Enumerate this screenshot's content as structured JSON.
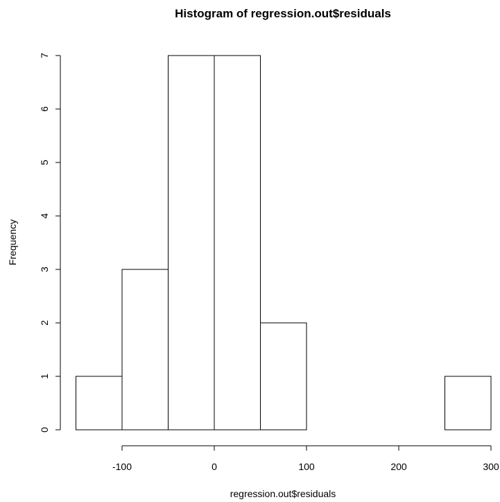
{
  "chart_data": {
    "type": "bar",
    "subtype": "histogram",
    "title": "Histogram of regression.out$residuals",
    "xlabel": "regression.out$residuals",
    "ylabel": "Frequency",
    "bins": [
      {
        "start": -150,
        "end": -100,
        "count": 1
      },
      {
        "start": -100,
        "end": -50,
        "count": 3
      },
      {
        "start": -50,
        "end": 0,
        "count": 7
      },
      {
        "start": 0,
        "end": 50,
        "count": 7
      },
      {
        "start": 50,
        "end": 100,
        "count": 2
      },
      {
        "start": 100,
        "end": 150,
        "count": 0
      },
      {
        "start": 150,
        "end": 200,
        "count": 0
      },
      {
        "start": 200,
        "end": 250,
        "count": 0
      },
      {
        "start": 250,
        "end": 300,
        "count": 1
      }
    ],
    "xlim": [
      -150,
      300
    ],
    "ylim": [
      0,
      7
    ],
    "x_ticks": [
      -100,
      0,
      100,
      200,
      300
    ],
    "y_ticks": [
      0,
      1,
      2,
      3,
      4,
      5,
      6,
      7
    ],
    "x_tick_labels": [
      "-100",
      "0",
      "100",
      "200",
      "300"
    ],
    "y_tick_labels": [
      "0",
      "1",
      "2",
      "3",
      "4",
      "5",
      "6",
      "7"
    ],
    "grid": false,
    "bar_fill": "#ffffff",
    "bar_stroke": "#000000"
  }
}
